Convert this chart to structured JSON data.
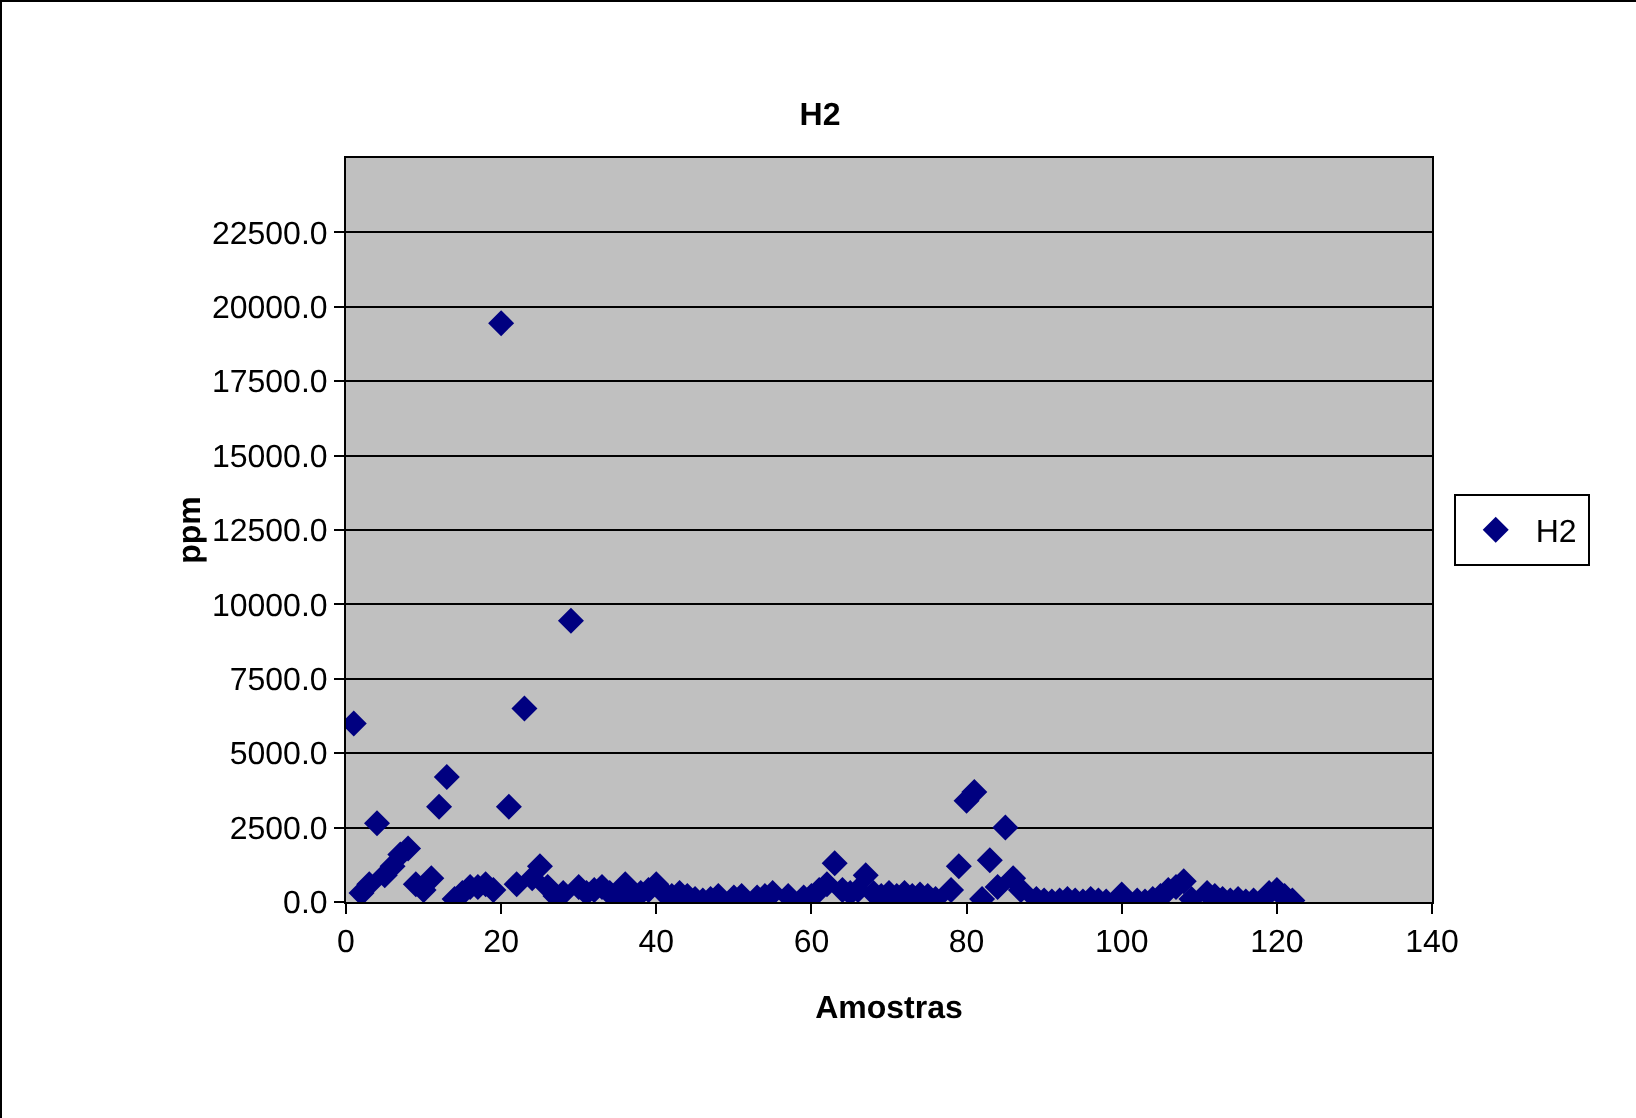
{
  "chart_data": {
    "type": "scatter",
    "title": "H2",
    "xlabel": "Amostras",
    "ylabel": "ppm",
    "xlim": [
      0,
      140
    ],
    "xticks": [
      0,
      20,
      40,
      60,
      80,
      100,
      120,
      140
    ],
    "ylim": [
      0,
      25000
    ],
    "yticks": [
      {
        "value": 0,
        "label": "0.0"
      },
      {
        "value": 2500,
        "label": "2500.0"
      },
      {
        "value": 5000,
        "label": "5000.0"
      },
      {
        "value": 7500,
        "label": "7500.0"
      },
      {
        "value": 10000,
        "label": "10000.0"
      },
      {
        "value": 12500,
        "label": "12500.0"
      },
      {
        "value": 15000,
        "label": "15000.0"
      },
      {
        "value": 17500,
        "label": "17500.0"
      },
      {
        "value": 20000,
        "label": "20000.0"
      },
      {
        "value": 22500,
        "label": "22500.0"
      }
    ],
    "grid": "y",
    "legend": "right",
    "marker": "diamond",
    "series": [
      {
        "name": "H2",
        "color": "#000080",
        "x": [
          1,
          2,
          3,
          4,
          5,
          6,
          7,
          8,
          9,
          10,
          11,
          12,
          13,
          14,
          15,
          16,
          17,
          18,
          19,
          20,
          21,
          22,
          23,
          24,
          25,
          26,
          27,
          28,
          29,
          30,
          31,
          32,
          33,
          34,
          35,
          36,
          37,
          38,
          39,
          40,
          41,
          42,
          43,
          44,
          45,
          46,
          47,
          48,
          49,
          50,
          51,
          52,
          53,
          54,
          55,
          56,
          57,
          58,
          59,
          60,
          61,
          62,
          63,
          64,
          65,
          66,
          67,
          68,
          69,
          70,
          71,
          72,
          73,
          74,
          75,
          76,
          77,
          78,
          79,
          80,
          81,
          82,
          83,
          84,
          85,
          86,
          87,
          88,
          89,
          90,
          91,
          92,
          93,
          94,
          95,
          96,
          97,
          98,
          99,
          100,
          101,
          102,
          103,
          104,
          105,
          106,
          107,
          108,
          109,
          110,
          111,
          112,
          113,
          114,
          115,
          116,
          117,
          118,
          119,
          120,
          121,
          122
        ],
        "values": [
          6000,
          300,
          600,
          2650,
          900,
          1200,
          1600,
          1800,
          600,
          400,
          800,
          3200,
          4200,
          100,
          300,
          500,
          500,
          600,
          400,
          19450,
          3200,
          600,
          6500,
          800,
          1200,
          500,
          200,
          300,
          9450,
          500,
          300,
          400,
          500,
          300,
          200,
          600,
          100,
          300,
          400,
          600,
          300,
          200,
          300,
          200,
          100,
          50,
          100,
          200,
          null,
          150,
          200,
          null,
          150,
          200,
          300,
          null,
          200,
          null,
          150,
          200,
          400,
          600,
          1300,
          400,
          300,
          400,
          900,
          300,
          200,
          300,
          200,
          300,
          200,
          250,
          200,
          100,
          null,
          400,
          1200,
          3400,
          3700,
          100,
          1400,
          500,
          2500,
          800,
          400,
          null,
          100,
          50,
          20,
          50,
          100,
          50,
          20,
          100,
          50,
          20,
          null,
          250,
          null,
          50,
          20,
          100,
          200,
          400,
          500,
          700,
          100,
          null,
          300,
          200,
          100,
          50,
          100,
          20,
          50,
          null,
          300,
          400,
          200,
          50
        ]
      }
    ]
  }
}
